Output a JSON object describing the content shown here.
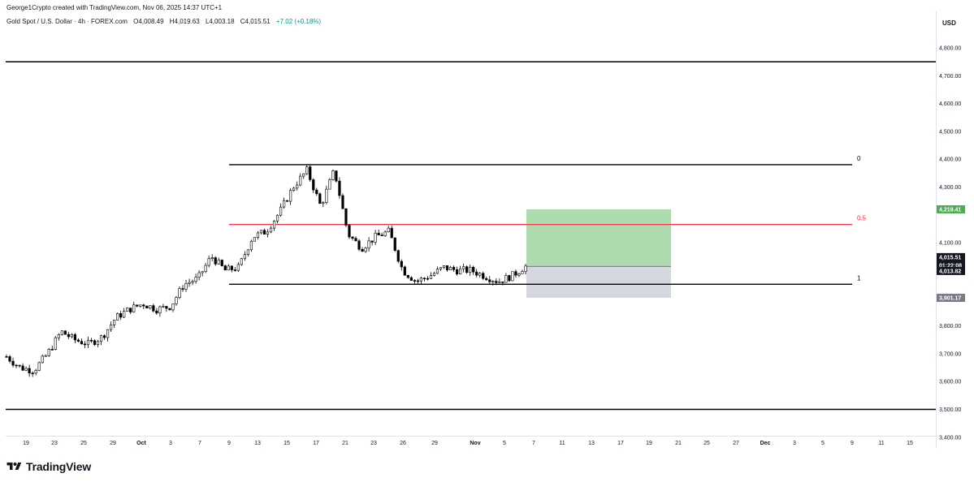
{
  "header": {
    "credit": "George1Crypto created with TradingView.com, Nov 06, 2025 14:37 UTC+1",
    "symbol": "Gold Spot / U.S. Dollar · 4h · FOREX.com",
    "open": "O4,008.49",
    "high": "H4,019.63",
    "low": "L4,003.18",
    "close": "C4,015.51",
    "change": "+7.02 (+0.18%)"
  },
  "price_axis": {
    "currency": "USD",
    "ticks": [
      "4,800.00",
      "4,700.00",
      "4,600.00",
      "4,500.00",
      "4,400.00",
      "4,300.00",
      "4,100.00",
      "3,800.00",
      "3,700.00",
      "3,600.00",
      "3,500.00",
      "3,400.00"
    ],
    "tags": {
      "target": "4,219.41",
      "last_price": "4,015.51",
      "countdown": "01:22:08",
      "fib_low": "4,013.82",
      "stop": "3,901.17"
    }
  },
  "time_axis": {
    "labels": [
      "19",
      "23",
      "25",
      "29",
      "Oct",
      "3",
      "7",
      "9",
      "13",
      "15",
      "17",
      "21",
      "23",
      "26",
      "29",
      "Nov",
      "5",
      "7",
      "11",
      "13",
      "17",
      "19",
      "21",
      "25",
      "27",
      "Dec",
      "3",
      "5",
      "9",
      "11",
      "15"
    ]
  },
  "fib": {
    "levels": [
      {
        "label": "0",
        "price": 4380
      },
      {
        "label": "0.5",
        "price": 4165
      },
      {
        "label": "1",
        "price": 3950
      }
    ],
    "colors": {
      "level_0": "#000000",
      "level_05": "#f23645",
      "level_1": "#000000"
    }
  },
  "horizontal_lines": [
    4750,
    3500
  ],
  "position": {
    "entry": 4013.82,
    "target": 4219.41,
    "stop": 3901.17,
    "colors": {
      "profit": "#a5d6a7",
      "loss": "#d1d4dc",
      "tag_green": "#4caf50",
      "tag_grey": "#787b86"
    }
  },
  "brand": {
    "name": "TradingView"
  },
  "chart_data": {
    "type": "candlestick",
    "title": "Gold Spot / U.S. Dollar · 4h · FOREX.com",
    "ylabel": "USD",
    "ylim": [
      3400,
      4850
    ],
    "x_ticks": [
      "19",
      "23",
      "25",
      "29",
      "Oct",
      "3",
      "7",
      "9",
      "13",
      "15",
      "17",
      "21",
      "23",
      "26",
      "29",
      "Nov",
      "5",
      "7",
      "11",
      "13",
      "17",
      "19",
      "21",
      "25",
      "27",
      "Dec",
      "3",
      "5",
      "9",
      "11",
      "15"
    ],
    "series": [
      {
        "name": "Gold Spot / U.S. Dollar",
        "close_path": [
          [
            "Sep 18",
            3690
          ],
          [
            "Sep 19",
            3650
          ],
          [
            "Sep 20",
            3640
          ],
          [
            "Sep 22",
            3700
          ],
          [
            "Sep 23",
            3780
          ],
          [
            "Sep 24",
            3750
          ],
          [
            "Sep 25",
            3735
          ],
          [
            "Sep 26",
            3760
          ],
          [
            "Sep 29",
            3830
          ],
          [
            "Sep 30",
            3860
          ],
          [
            "Oct 1",
            3880
          ],
          [
            "Oct 2",
            3860
          ],
          [
            "Oct 3",
            3870
          ],
          [
            "Oct 6",
            3950
          ],
          [
            "Oct 7",
            3970
          ],
          [
            "Oct 8",
            4050
          ],
          [
            "Oct 9",
            4000
          ],
          [
            "Oct 10",
            4010
          ],
          [
            "Oct 13",
            4120
          ],
          [
            "Oct 14",
            4140
          ],
          [
            "Oct 15",
            4210
          ],
          [
            "Oct 16",
            4300
          ],
          [
            "Oct 17",
            4360
          ],
          [
            "Oct 18",
            4230
          ],
          [
            "Oct 20",
            4360
          ],
          [
            "Oct 21",
            4130
          ],
          [
            "Oct 22",
            4080
          ],
          [
            "Oct 23",
            4120
          ],
          [
            "Oct 24",
            4140
          ],
          [
            "Oct 27",
            4000
          ],
          [
            "Oct 28",
            3960
          ],
          [
            "Oct 29",
            3980
          ],
          [
            "Oct 30",
            4010
          ],
          [
            "Oct 31",
            4000
          ],
          [
            "Nov 1",
            4000
          ],
          [
            "Nov 3",
            3980
          ],
          [
            "Nov 4",
            3960
          ],
          [
            "Nov 5",
            3980
          ],
          [
            "Nov 6",
            4015.51
          ]
        ]
      }
    ],
    "last": {
      "open": 4008.49,
      "high": 4019.63,
      "low": 4003.18,
      "close": 4015.51,
      "change": 7.02,
      "change_pct": 0.18
    }
  }
}
